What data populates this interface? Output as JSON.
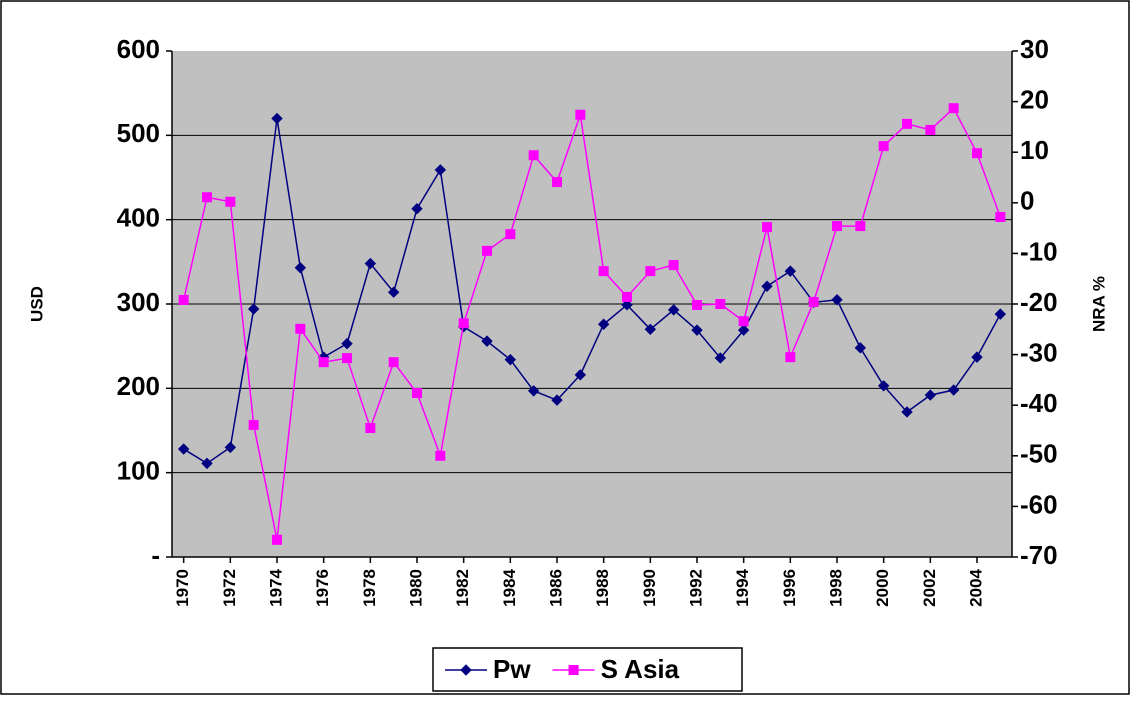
{
  "chart_data": {
    "type": "line",
    "x": [
      1970,
      1971,
      1972,
      1973,
      1974,
      1975,
      1976,
      1977,
      1978,
      1979,
      1980,
      1981,
      1982,
      1983,
      1984,
      1985,
      1986,
      1987,
      1988,
      1989,
      1990,
      1991,
      1992,
      1993,
      1994,
      1995,
      1996,
      1997,
      1998,
      1999,
      2000,
      2001,
      2002,
      2003,
      2004,
      2005
    ],
    "xlim": [
      1969.5,
      2005.5
    ],
    "xticks": [
      1970,
      1972,
      1974,
      1976,
      1978,
      1980,
      1982,
      1984,
      1986,
      1988,
      1990,
      1992,
      1994,
      1996,
      1998,
      2000,
      2002,
      2004
    ],
    "y_label": "USD",
    "y2_label": "NRA %",
    "ylim": [
      0,
      600
    ],
    "yticks": [
      {
        "value": 0,
        "label": "-"
      },
      100,
      200,
      300,
      400,
      500,
      600
    ],
    "y2lim": [
      -70,
      30
    ],
    "y2ticks": [
      -70,
      -60,
      -50,
      -40,
      -30,
      -20,
      -10,
      0,
      10,
      20,
      30
    ],
    "grid": true,
    "legend": "bottom",
    "series": [
      {
        "name": "Pw",
        "color": "#000080",
        "marker": "diamond",
        "values": [
          128,
          111,
          130,
          294,
          520,
          343,
          237,
          253,
          348,
          314,
          413,
          459,
          273,
          256,
          234,
          197,
          186,
          216,
          276,
          299,
          270,
          293,
          269,
          236,
          269,
          321,
          339,
          302,
          305,
          248,
          203,
          172,
          192,
          198,
          237,
          288
        ]
      },
      {
        "name": "S Asia",
        "color": "#ff00ff",
        "marker": "square",
        "axis": "y2",
        "values": [
          -19.2,
          1.1,
          0.2,
          -43.9,
          -66.6,
          -24.9,
          -31.5,
          -30.7,
          -44.5,
          -31.5,
          -37.6,
          -50.0,
          -23.8,
          -9.5,
          -6.2,
          9.4,
          4.1,
          17.4,
          -13.5,
          -18.6,
          -13.5,
          -12.3,
          -20.2,
          -20.0,
          -23.4,
          -4.8,
          -30.5,
          -19.6,
          -4.6,
          -4.6,
          11.2,
          15.6,
          14.4,
          18.7,
          9.8,
          -2.8
        ]
      }
    ]
  }
}
